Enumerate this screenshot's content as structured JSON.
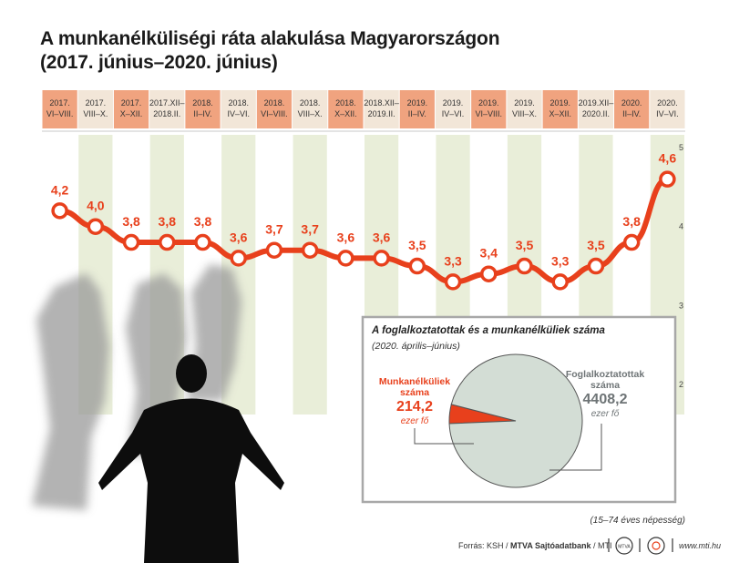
{
  "title_line1": "A munkanélküliségi ráta alakulása Magyarországon",
  "title_line2": "(2017. június–2020. június)",
  "chart_data": [
    {
      "type": "line",
      "categories": [
        [
          "2017.",
          "VI–VIII."
        ],
        [
          "2017.",
          "VIII–X."
        ],
        [
          "2017.",
          "X–XII."
        ],
        [
          "2017.XII–",
          "2018.II."
        ],
        [
          "2018.",
          "II–IV."
        ],
        [
          "2018.",
          "IV–VI."
        ],
        [
          "2018.",
          "VI–VIII."
        ],
        [
          "2018.",
          "VIII–X."
        ],
        [
          "2018.",
          "X–XII."
        ],
        [
          "2018.XII–",
          "2019.II."
        ],
        [
          "2019.",
          "II–IV."
        ],
        [
          "2019.",
          "IV–VI."
        ],
        [
          "2019.",
          "VI–VIII."
        ],
        [
          "2019.",
          "VIII–X."
        ],
        [
          "2019.",
          "X–XII."
        ],
        [
          "2019.XII–",
          "2020.II."
        ],
        [
          "2020.",
          "II–IV."
        ],
        [
          "2020.",
          "IV–VI."
        ]
      ],
      "values": [
        4.2,
        4.0,
        3.8,
        3.8,
        3.8,
        3.6,
        3.7,
        3.7,
        3.6,
        3.6,
        3.5,
        3.3,
        3.4,
        3.5,
        3.3,
        3.5,
        3.8,
        4.6
      ],
      "value_labels": [
        "4,2",
        "4,0",
        "3,8",
        "3,8",
        "3,8",
        "3,6",
        "3,7",
        "3,7",
        "3,6",
        "3,6",
        "3,5",
        "3,3",
        "3,4",
        "3,5",
        "3,3",
        "3,5",
        "3,8",
        "4,6"
      ],
      "yticks": [
        2,
        3,
        4,
        5
      ],
      "ytick_labels": [
        "2",
        "3",
        "4",
        "5"
      ],
      "ylim": [
        1.7,
        5.1
      ],
      "colors": {
        "line": "#e8401c",
        "header_orange": "#f0a37f",
        "header_beige": "#f2e6d8",
        "band_green": "#e9eed9"
      }
    },
    {
      "type": "pie",
      "title": "A foglalkoztatottak és a munkanélküliek száma",
      "subtitle": "(2020. április–június)",
      "slices": [
        {
          "name_line1": "Munkanélküliek",
          "name_line2": "száma",
          "value": 214.2,
          "value_label": "214,2",
          "unit": "ezer fő",
          "color": "#e8401c"
        },
        {
          "name_line1": "Foglalkoztatottak",
          "name_line2": "száma",
          "value": 4408.2,
          "value_label": "4408,2",
          "unit": "ezer fő",
          "color": "#d3ddd5"
        }
      ]
    }
  ],
  "population_note": "(15–74 éves népesség)",
  "source": {
    "prefix": "Forrás: KSH / ",
    "agency": "MTVA Sajtóadatbank",
    "suffix": " / MTI"
  },
  "logos": [
    "MTVA",
    "MTI"
  ],
  "website": "www.mti.hu"
}
